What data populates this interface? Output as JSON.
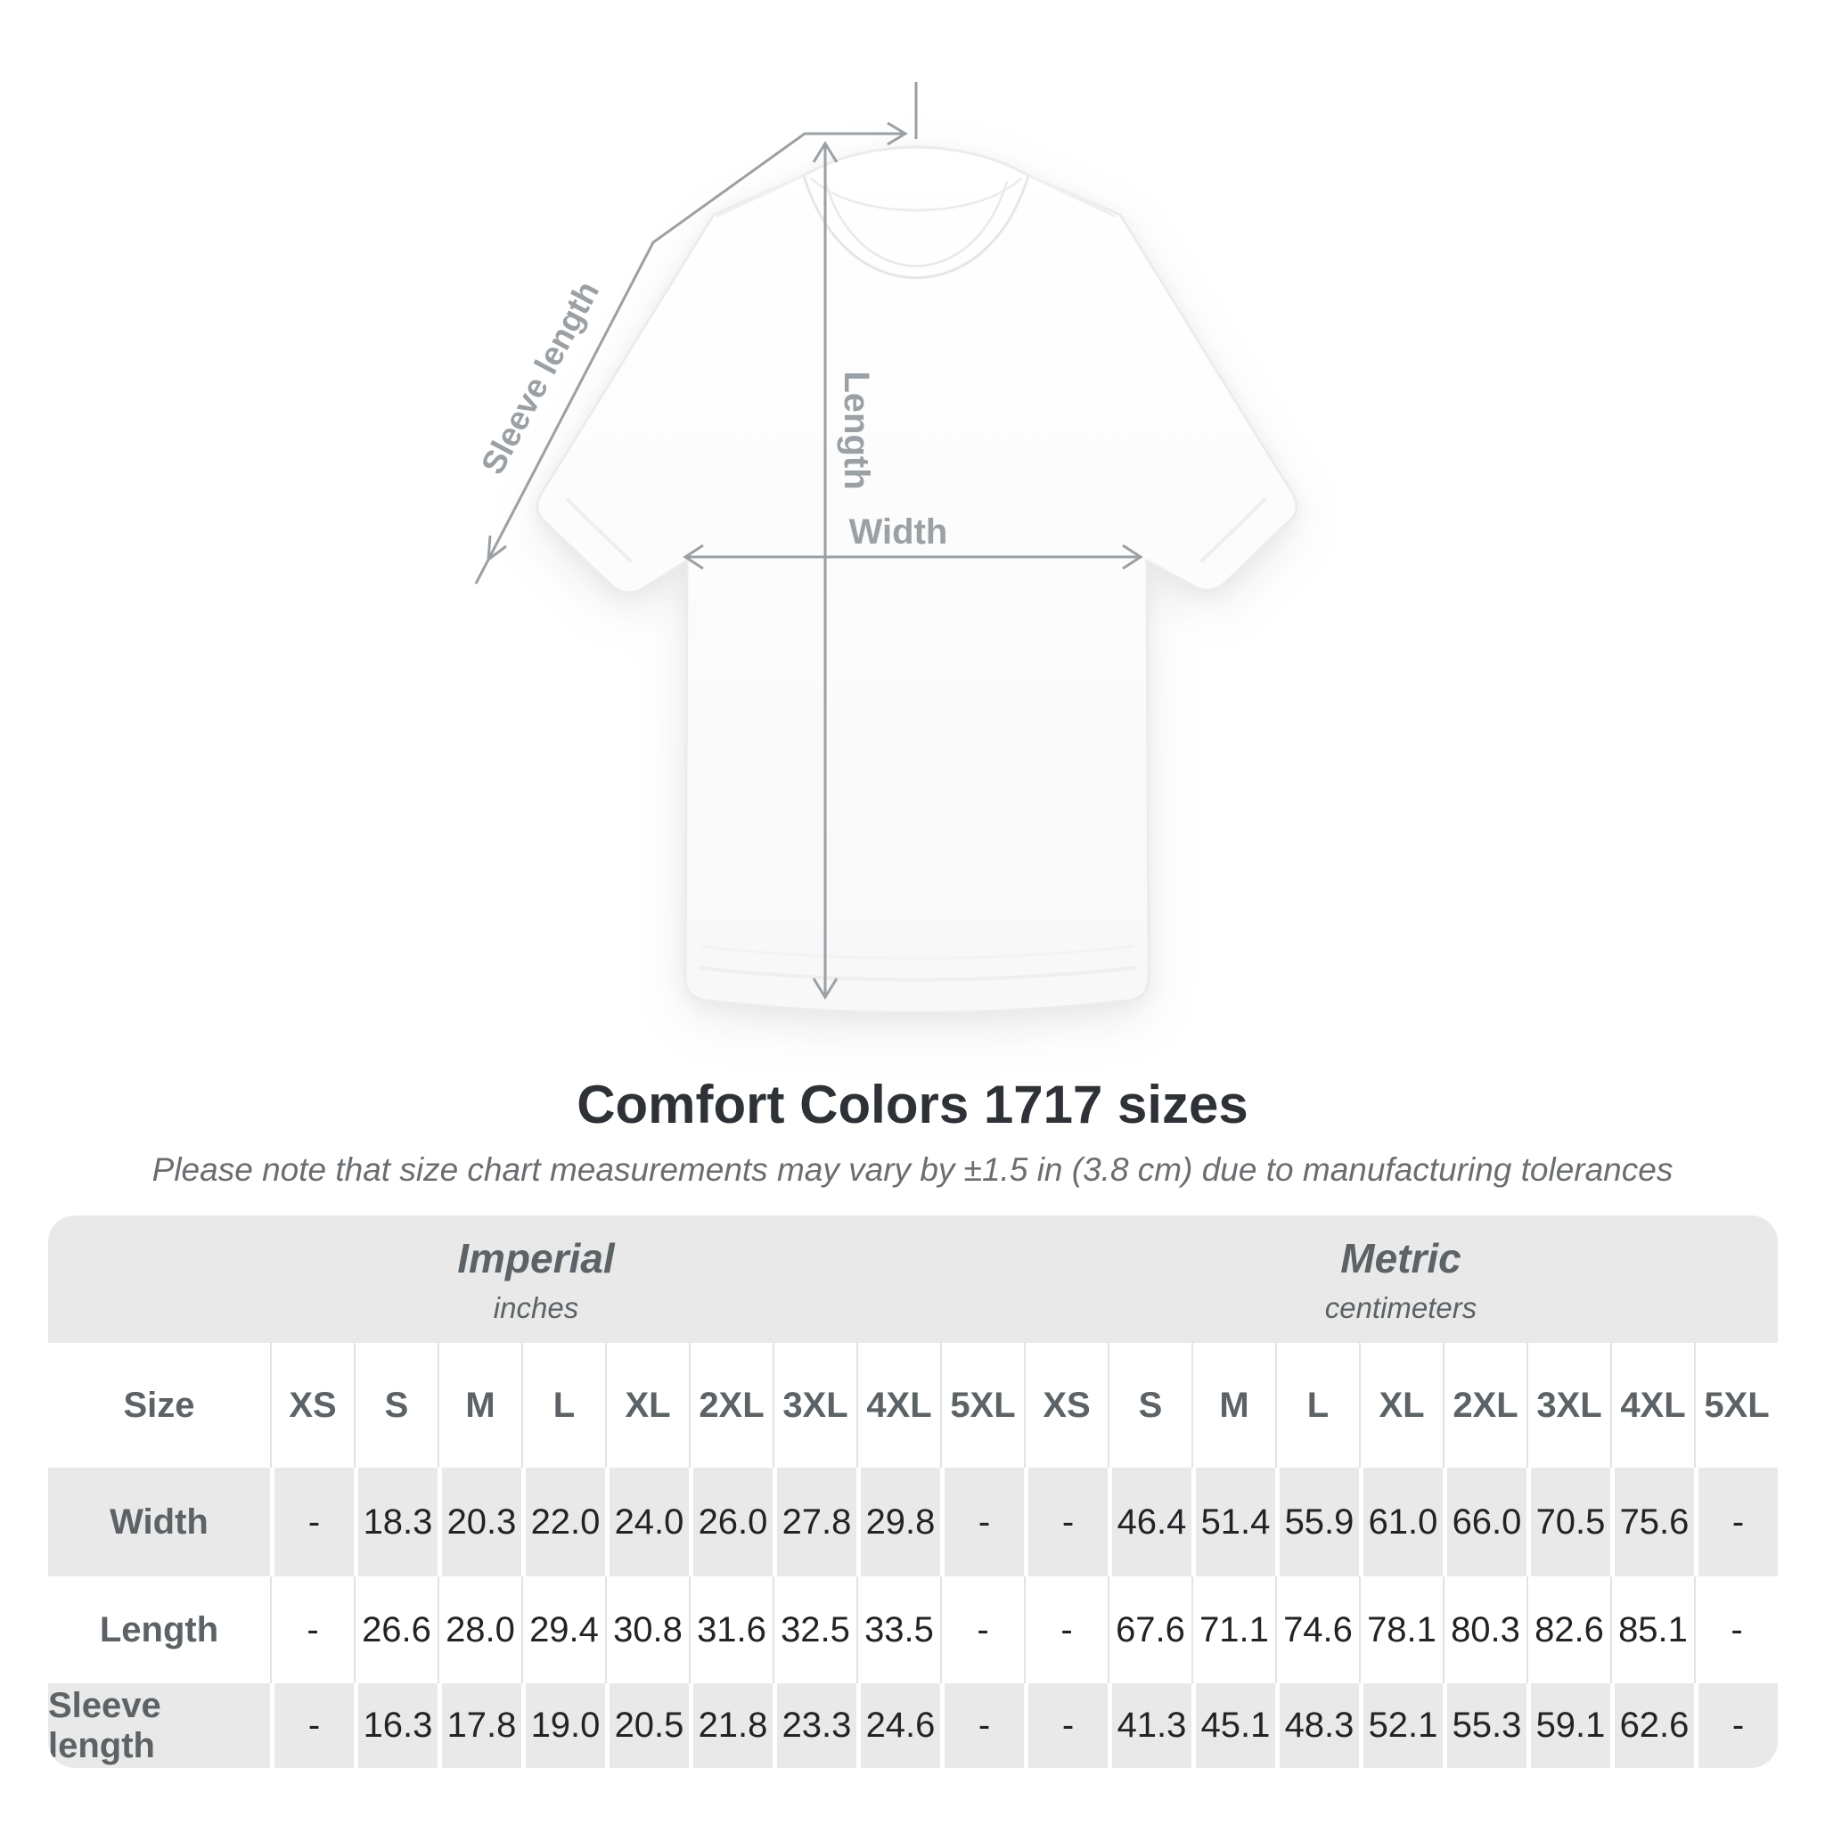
{
  "diagram": {
    "sleeve_length_label": "Sleeve length",
    "length_label": "Length",
    "width_label": "Width"
  },
  "chart_data": {
    "type": "table",
    "title": "Comfort Colors 1717 sizes",
    "subtitle": "Please note that size chart measurements may vary by ±1.5 in (3.8 cm) due to manufacturing tolerances",
    "row_header": "Size",
    "columns": [
      "XS",
      "S",
      "M",
      "L",
      "XL",
      "2XL",
      "3XL",
      "4XL",
      "5XL"
    ],
    "groups": [
      {
        "key": "imperial",
        "label": "Imperial",
        "units": "inches"
      },
      {
        "key": "metric",
        "label": "Metric",
        "units": "centimeters"
      }
    ],
    "rows": [
      {
        "label": "Width",
        "imperial": [
          "-",
          "18.3",
          "20.3",
          "22.0",
          "24.0",
          "26.0",
          "27.8",
          "29.8",
          "-"
        ],
        "metric": [
          "-",
          "46.4",
          "51.4",
          "55.9",
          "61.0",
          "66.0",
          "70.5",
          "75.6",
          "-"
        ]
      },
      {
        "label": "Length",
        "imperial": [
          "-",
          "26.6",
          "28.0",
          "29.4",
          "30.8",
          "31.6",
          "32.5",
          "33.5",
          "-"
        ],
        "metric": [
          "-",
          "67.6",
          "71.1",
          "74.6",
          "78.1",
          "80.3",
          "82.6",
          "85.1",
          "-"
        ]
      },
      {
        "label": "Sleeve length",
        "imperial": [
          "-",
          "16.3",
          "17.8",
          "19.0",
          "20.5",
          "21.8",
          "23.3",
          "24.6",
          "-"
        ],
        "metric": [
          "-",
          "41.3",
          "45.1",
          "48.3",
          "52.1",
          "55.3",
          "59.1",
          "62.6",
          "-"
        ]
      }
    ]
  },
  "colors": {
    "band_gray": "#e9e9e9",
    "header_text": "#5c6265",
    "value_text": "#212326",
    "annotation_gray": "#9aa0a4",
    "title_text": "#2e3236",
    "subtitle_text": "#6a6e71"
  }
}
